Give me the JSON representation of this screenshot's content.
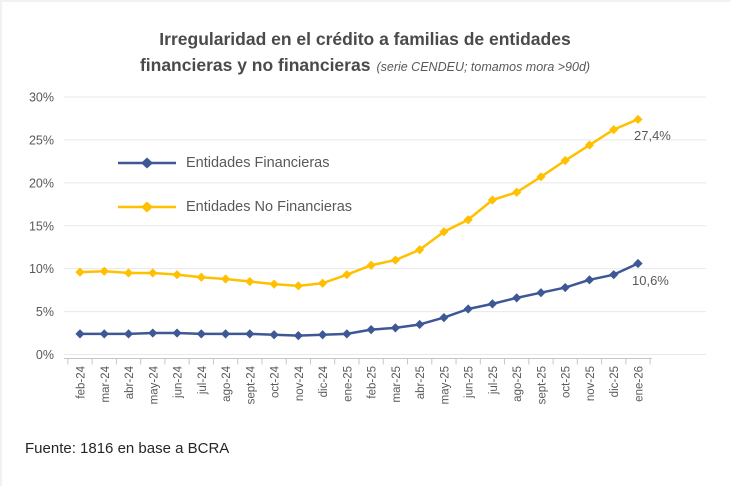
{
  "title": {
    "line1": "Irregularidad en el crédito a familias de entidades",
    "line2": "financieras y no financieras",
    "subtitle": "(serie CENDEU; tomamos mora >90d)"
  },
  "source": "Fuente: 1816 en base a BCRA",
  "colors": {
    "financieras_line": "#3E5795",
    "no_financieras_line": "#FFC000",
    "gridline": "#E8E8E8",
    "axis": "#C6C6C6",
    "tick_label": "#595959"
  },
  "chart_data": {
    "type": "line",
    "categories": [
      "feb-24",
      "mar-24",
      "abr-24",
      "may-24",
      "jun-24",
      "jul-24",
      "ago-24",
      "sept-24",
      "oct-24",
      "nov-24",
      "dic-24",
      "ene-25",
      "feb-25",
      "mar-25",
      "abr-25",
      "may-25",
      "jun-25",
      "jul-25",
      "ago-25",
      "sept-25",
      "oct-25",
      "nov-25",
      "dic-25",
      "ene-26"
    ],
    "series": [
      {
        "name": "Entidades Financieras",
        "color": "#3E5795",
        "values": [
          2.4,
          2.4,
          2.4,
          2.5,
          2.5,
          2.4,
          2.4,
          2.4,
          2.3,
          2.2,
          2.3,
          2.4,
          2.9,
          3.1,
          3.5,
          4.3,
          5.3,
          5.9,
          6.6,
          7.2,
          7.8,
          8.7,
          9.3,
          10.6
        ],
        "end_label": "10,6%"
      },
      {
        "name": "Entidades No Financieras",
        "color": "#FFC000",
        "values": [
          9.6,
          9.7,
          9.5,
          9.5,
          9.3,
          9.0,
          8.8,
          8.5,
          8.2,
          8.0,
          8.3,
          9.3,
          10.4,
          11.0,
          12.2,
          14.3,
          15.7,
          18.0,
          18.9,
          20.7,
          22.6,
          24.4,
          26.2,
          27.4
        ],
        "end_label": "27,4%"
      }
    ],
    "y_ticks": [
      "0%",
      "5%",
      "10%",
      "15%",
      "20%",
      "25%",
      "30%"
    ],
    "ylim": [
      0,
      30
    ],
    "grid": true,
    "legend_position": "top-left-inside",
    "marker": "diamond"
  }
}
